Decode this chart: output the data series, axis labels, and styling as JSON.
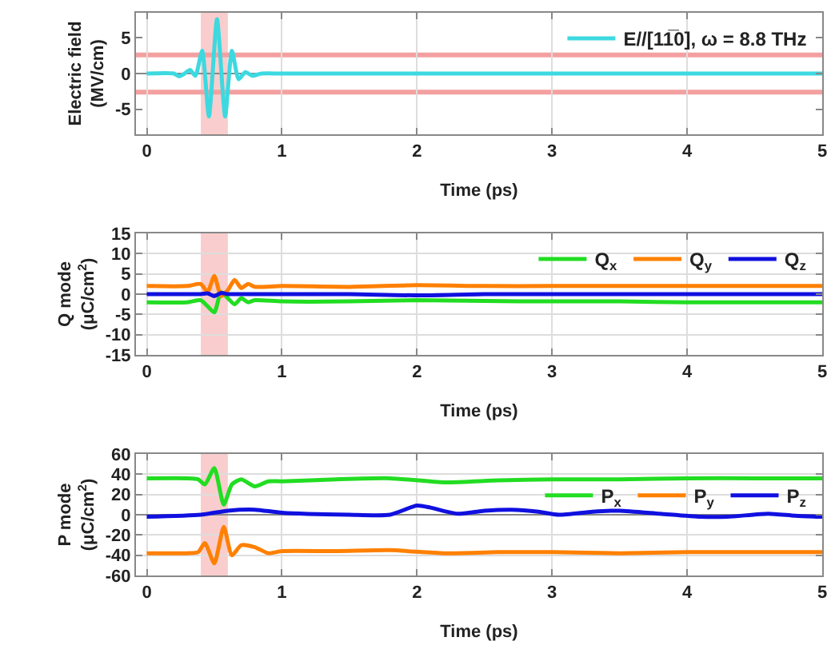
{
  "chart_data": [
    {
      "type": "line",
      "xlabel": "Time (ps)",
      "ylabel": "Electric field\n(MV/cm)",
      "xlim": [
        -0.08,
        5
      ],
      "xticks": [
        0,
        1,
        2,
        3,
        4,
        5
      ],
      "ylim": [
        -8.5,
        8.5
      ],
      "yticks": [
        -5,
        0,
        5
      ],
      "grid": "x",
      "legend": "top right",
      "series": [
        {
          "name": "E//[11̅0], ω = 8.8 THz",
          "color": "#3dd9e0",
          "x": [
            0,
            0.2,
            0.24,
            0.28,
            0.32,
            0.36,
            0.41,
            0.46,
            0.52,
            0.58,
            0.63,
            0.68,
            0.73,
            0.78,
            0.85,
            1,
            2,
            3,
            4,
            5
          ],
          "values": [
            0,
            0,
            -0.4,
            0,
            0.5,
            -0.3,
            3.2,
            -6,
            7.6,
            -6,
            3.2,
            -0.8,
            0.2,
            -0.3,
            0,
            0,
            0,
            0,
            0,
            0
          ]
        }
      ],
      "ref_lines": [
        {
          "axis": "y",
          "value": 2.6,
          "color": "#f4a0a0"
        },
        {
          "axis": "y",
          "value": -2.6,
          "color": "#f4a0a0"
        }
      ],
      "bands": [
        {
          "axis": "x",
          "from": 0.4,
          "to": 0.6,
          "color": "#f8c8c8"
        }
      ]
    },
    {
      "type": "line",
      "xlabel": "Time (ps)",
      "ylabel": "Q mode\n(μC/cm$^{2}$)",
      "xlim": [
        -0.08,
        5
      ],
      "xticks": [
        0,
        1,
        2,
        3,
        4,
        5
      ],
      "ylim": [
        -15,
        15
      ],
      "yticks": [
        -15,
        -10,
        -5,
        0,
        5,
        10,
        15
      ],
      "grid": true,
      "legend": "top right",
      "x": [
        0,
        0.3,
        0.4,
        0.45,
        0.5,
        0.55,
        0.6,
        0.65,
        0.7,
        0.75,
        0.8,
        1,
        1.5,
        2,
        2.5,
        3,
        3.5,
        4,
        4.5,
        5
      ],
      "series": [
        {
          "name": "Q$_{x}$",
          "color": "#22dd22",
          "values": [
            -2,
            -2,
            -1.5,
            -3,
            -4.5,
            0.5,
            -1,
            -2.5,
            -1,
            -2,
            -1.5,
            -1.8,
            -1.8,
            -1.5,
            -1.7,
            -1.8,
            -1.8,
            -2,
            -2,
            -2
          ]
        },
        {
          "name": "Q$_{y}$",
          "color": "#ff8000",
          "values": [
            2,
            2,
            2.5,
            0.5,
            4.5,
            -0.5,
            1,
            3.5,
            1.5,
            2.5,
            1.8,
            2,
            1.8,
            2.2,
            2,
            2,
            2,
            2,
            2,
            2
          ]
        },
        {
          "name": "Q$_{z}$",
          "color": "#1010e0",
          "values": [
            0,
            0,
            0,
            0.2,
            -0.5,
            0.3,
            0,
            0,
            0,
            0,
            0,
            0,
            0,
            -0.3,
            0,
            0,
            0,
            0,
            0,
            0
          ]
        }
      ],
      "bands": [
        {
          "axis": "x",
          "from": 0.4,
          "to": 0.6,
          "color": "#f8c8c8"
        }
      ]
    },
    {
      "type": "line",
      "xlabel": "Time (ps)",
      "ylabel": "P mode\n(μC/cm$^{2}$)",
      "xlim": [
        -0.08,
        5
      ],
      "xticks": [
        0,
        1,
        2,
        3,
        4,
        5
      ],
      "ylim": [
        -60,
        60
      ],
      "yticks": [
        -60,
        -40,
        -20,
        0,
        20,
        40,
        60
      ],
      "grid": true,
      "legend": "right",
      "series": [
        {
          "name": "P$_{x}$",
          "color": "#22dd22",
          "x": [
            0,
            0.3,
            0.38,
            0.43,
            0.5,
            0.57,
            0.63,
            0.7,
            0.8,
            0.9,
            1,
            1.4,
            1.8,
            2.2,
            2.6,
            3,
            3.5,
            4,
            4.5,
            5
          ],
          "values": [
            36,
            36,
            35,
            30,
            46,
            10,
            30,
            35,
            28,
            33,
            33,
            35,
            36,
            32,
            34,
            35,
            35,
            36,
            36,
            36
          ]
        },
        {
          "name": "P$_{y}$",
          "color": "#ff8000",
          "x": [
            0,
            0.3,
            0.38,
            0.43,
            0.5,
            0.57,
            0.63,
            0.7,
            0.8,
            0.9,
            1,
            1.4,
            1.8,
            2.2,
            2.6,
            3,
            3.5,
            4,
            4.5,
            5
          ],
          "values": [
            -38,
            -38,
            -37,
            -28,
            -48,
            -12,
            -40,
            -30,
            -32,
            -38,
            -36,
            -36,
            -35,
            -38,
            -37,
            -37,
            -38,
            -37,
            -37,
            -37
          ]
        },
        {
          "name": "P$_{z}$",
          "color": "#1010e0",
          "x": [
            0,
            0.4,
            0.6,
            0.8,
            1,
            1.5,
            1.8,
            2,
            2.1,
            2.3,
            2.5,
            2.7,
            2.9,
            3.05,
            3.3,
            3.5,
            3.8,
            4.1,
            4.3,
            4.6,
            4.8,
            5
          ],
          "values": [
            -2,
            0,
            4,
            5,
            2,
            0,
            0,
            9,
            7,
            1,
            4,
            5,
            3,
            0,
            3,
            4,
            1,
            -2,
            -2,
            1,
            -1,
            -2
          ]
        }
      ],
      "bands": [
        {
          "axis": "x",
          "from": 0.4,
          "to": 0.6,
          "color": "#f8c8c8"
        }
      ]
    }
  ]
}
